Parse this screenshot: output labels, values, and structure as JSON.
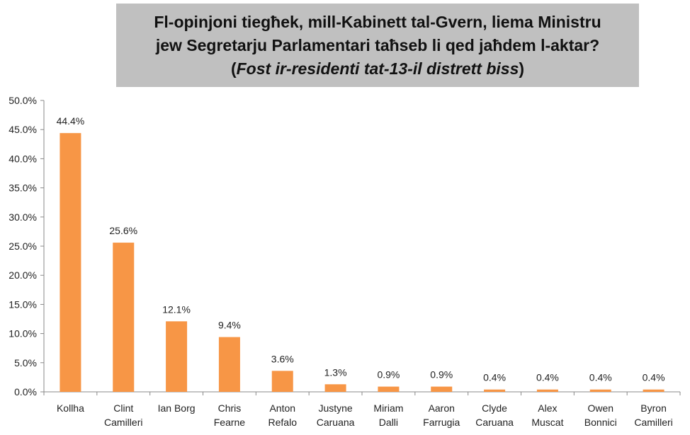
{
  "title": {
    "line1": "Fl-opinjoni tiegħek, mill-Kabinett tal-Gvern, liema Ministru",
    "line2": "jew Segretarju Parlamentari taħseb li qed jaħdem l-aktar?",
    "line3_open": "(",
    "line3_italic": "Fost ir-residenti tat-13-il distrett biss",
    "line3_close": ")"
  },
  "chart_data": {
    "type": "bar",
    "title": "Fl-opinjoni tiegħek, mill-Kabinett tal-Gvern, liema Ministru jew Segretarju Parlamentari taħseb li qed jaħdem l-aktar? (Fost ir-residenti tat-13-il distrett biss)",
    "categories": [
      [
        "Kollha"
      ],
      [
        "Clint",
        "Camilleri"
      ],
      [
        "Ian Borg"
      ],
      [
        "Chris",
        "Fearne"
      ],
      [
        "Anton",
        "Refalo"
      ],
      [
        "Justyne",
        "Caruana"
      ],
      [
        "Miriam",
        "Dalli"
      ],
      [
        "Aaron",
        "Farrugia"
      ],
      [
        "Clyde",
        "Caruana"
      ],
      [
        "Alex",
        "Muscat"
      ],
      [
        "Owen",
        "Bonnici"
      ],
      [
        "Byron",
        "Camilleri"
      ]
    ],
    "values": [
      44.4,
      25.6,
      12.1,
      9.4,
      3.6,
      1.3,
      0.9,
      0.9,
      0.4,
      0.4,
      0.4,
      0.4
    ],
    "data_labels": [
      "44.4%",
      "25.6%",
      "12.1%",
      "9.4%",
      "3.6%",
      "1.3%",
      "0.9%",
      "0.9%",
      "0.4%",
      "0.4%",
      "0.4%",
      "0.4%"
    ],
    "ylim": [
      0,
      50
    ],
    "yticks": [
      "0.0%",
      "5.0%",
      "10.0%",
      "15.0%",
      "20.0%",
      "25.0%",
      "30.0%",
      "35.0%",
      "40.0%",
      "45.0%",
      "50.0%"
    ],
    "xlabel": "",
    "ylabel": "",
    "grid": false,
    "bar_color": "#f79646",
    "axis_color": "#888888"
  }
}
